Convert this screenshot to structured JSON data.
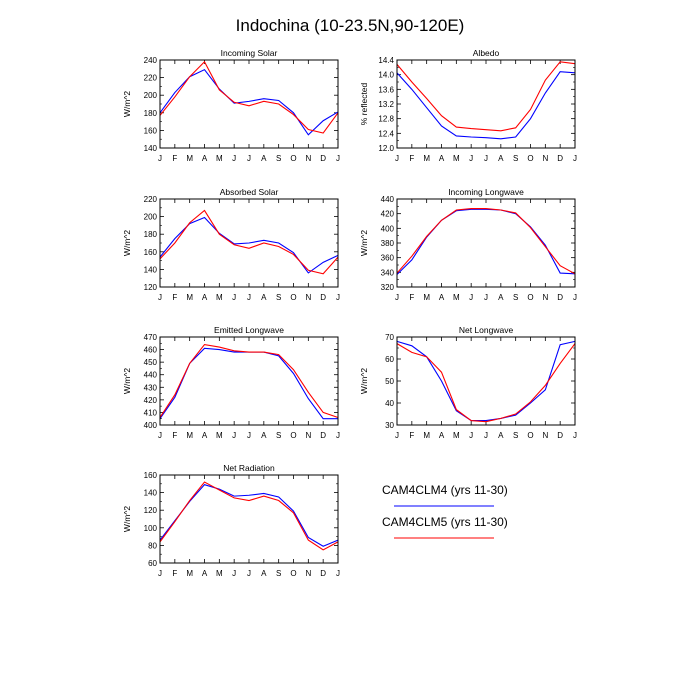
{
  "figure": {
    "title": "Indochina (10-23.5N,90-120E)"
  },
  "legend": {
    "entries": [
      {
        "label": "CAM4CLM4 (yrs 11-30)",
        "color": "#0000ff"
      },
      {
        "label": "CAM4CLM5 (yrs 11-30)",
        "color": "#ff0000"
      }
    ]
  },
  "chart_data": [
    {
      "type": "line",
      "title": "Incoming Solar",
      "ylabel": "W/m^2",
      "ylim": [
        140,
        240
      ],
      "yticks": [
        140,
        160,
        180,
        200,
        220,
        240
      ],
      "categories": [
        "J",
        "F",
        "M",
        "A",
        "M",
        "J",
        "J",
        "A",
        "S",
        "O",
        "N",
        "D",
        "J"
      ],
      "series": [
        {
          "name": "CAM4CLM4 (yrs 11-30)",
          "color": "#0000ff",
          "values": [
            180,
            203,
            221,
            229,
            207,
            191,
            193,
            196,
            194,
            180,
            155,
            171,
            181
          ]
        },
        {
          "name": "CAM4CLM5 (yrs 11-30)",
          "color": "#ff0000",
          "values": [
            177,
            198,
            221,
            238,
            206,
            192,
            188,
            193,
            190,
            178,
            161,
            157,
            180
          ]
        }
      ]
    },
    {
      "type": "line",
      "title": "Albedo",
      "ylabel": "% reflected",
      "ylim": [
        12.0,
        14.4
      ],
      "yticks": [
        12.0,
        12.4,
        12.8,
        13.2,
        13.6,
        14.0,
        14.4
      ],
      "categories": [
        "J",
        "F",
        "M",
        "A",
        "M",
        "J",
        "J",
        "A",
        "S",
        "O",
        "N",
        "D",
        "J"
      ],
      "series": [
        {
          "name": "CAM4CLM4 (yrs 11-30)",
          "color": "#0000ff",
          "values": [
            14.05,
            13.6,
            13.1,
            12.6,
            12.33,
            12.3,
            12.28,
            12.25,
            12.3,
            12.8,
            13.5,
            14.08,
            14.05
          ]
        },
        {
          "name": "CAM4CLM5 (yrs 11-30)",
          "color": "#ff0000",
          "values": [
            14.28,
            13.8,
            13.35,
            12.88,
            12.57,
            12.53,
            12.5,
            12.47,
            12.55,
            13.05,
            13.85,
            14.35,
            14.3
          ]
        }
      ]
    },
    {
      "type": "line",
      "title": "Absorbed Solar",
      "ylabel": "W/m^2",
      "ylim": [
        120,
        220
      ],
      "yticks": [
        120,
        140,
        160,
        180,
        200,
        220
      ],
      "categories": [
        "J",
        "F",
        "M",
        "A",
        "M",
        "J",
        "J",
        "A",
        "S",
        "O",
        "N",
        "D",
        "J"
      ],
      "series": [
        {
          "name": "CAM4CLM4 (yrs 11-30)",
          "color": "#0000ff",
          "values": [
            154,
            175,
            192,
            199,
            181,
            169,
            170,
            173,
            170,
            159,
            136,
            148,
            156
          ]
        },
        {
          "name": "CAM4CLM5 (yrs 11-30)",
          "color": "#ff0000",
          "values": [
            152,
            170,
            193,
            207,
            180,
            168,
            164,
            170,
            166,
            157,
            139,
            135,
            154
          ]
        }
      ]
    },
    {
      "type": "line",
      "title": "Incoming Longwave",
      "ylabel": "W/m^2",
      "ylim": [
        320,
        440
      ],
      "yticks": [
        320,
        340,
        360,
        380,
        400,
        420,
        440
      ],
      "categories": [
        "J",
        "F",
        "M",
        "A",
        "M",
        "J",
        "J",
        "A",
        "S",
        "O",
        "N",
        "D",
        "J"
      ],
      "series": [
        {
          "name": "CAM4CLM4 (yrs 11-30)",
          "color": "#0000ff",
          "values": [
            337,
            357,
            388,
            411,
            424,
            426,
            426,
            425,
            420,
            402,
            377,
            339,
            338
          ]
        },
        {
          "name": "CAM4CLM5 (yrs 11-30)",
          "color": "#ff0000",
          "values": [
            339,
            362,
            389,
            411,
            425,
            427,
            427,
            425,
            421,
            401,
            375,
            349,
            338
          ]
        }
      ]
    },
    {
      "type": "line",
      "title": "Emitted Longwave",
      "ylabel": "W/m^2",
      "ylim": [
        400,
        470
      ],
      "yticks": [
        400,
        410,
        420,
        430,
        440,
        450,
        460,
        470
      ],
      "categories": [
        "J",
        "F",
        "M",
        "A",
        "M",
        "J",
        "J",
        "A",
        "S",
        "O",
        "N",
        "D",
        "J"
      ],
      "series": [
        {
          "name": "CAM4CLM4 (yrs 11-30)",
          "color": "#0000ff",
          "values": [
            405,
            422,
            449,
            461,
            460,
            458,
            458,
            458,
            455,
            441,
            421,
            405,
            405
          ]
        },
        {
          "name": "CAM4CLM5 (yrs 11-30)",
          "color": "#ff0000",
          "values": [
            406,
            424,
            449,
            464,
            462,
            459,
            458,
            458,
            456,
            444,
            426,
            410,
            406
          ]
        }
      ]
    },
    {
      "type": "line",
      "title": "Net Longwave",
      "ylabel": "W/m^2",
      "ylim": [
        30,
        70
      ],
      "yticks": [
        30,
        40,
        50,
        60,
        70
      ],
      "categories": [
        "J",
        "F",
        "M",
        "A",
        "M",
        "J",
        "J",
        "A",
        "S",
        "O",
        "N",
        "D",
        "J"
      ],
      "series": [
        {
          "name": "CAM4CLM4 (yrs 11-30)",
          "color": "#0000ff",
          "values": [
            68,
            66,
            61,
            50,
            36.5,
            32,
            32,
            33,
            34.5,
            40,
            46,
            66.5,
            68
          ]
        },
        {
          "name": "CAM4CLM5 (yrs 11-30)",
          "color": "#ff0000",
          "values": [
            67,
            63,
            61,
            54,
            37,
            32,
            31.5,
            33,
            35,
            40.5,
            48,
            58,
            67
          ]
        }
      ]
    },
    {
      "type": "line",
      "title": "Net Radiation",
      "ylabel": "W/m^2",
      "ylim": [
        60,
        160
      ],
      "yticks": [
        60,
        80,
        100,
        120,
        140,
        160
      ],
      "categories": [
        "J",
        "F",
        "M",
        "A",
        "M",
        "J",
        "J",
        "A",
        "S",
        "O",
        "N",
        "D",
        "J"
      ],
      "series": [
        {
          "name": "CAM4CLM4 (yrs 11-30)",
          "color": "#0000ff",
          "values": [
            86,
            108,
            130,
            149,
            144,
            136,
            137,
            139,
            135,
            119,
            89,
            79,
            86
          ]
        },
        {
          "name": "CAM4CLM5 (yrs 11-30)",
          "color": "#ff0000",
          "values": [
            84,
            107,
            131,
            152,
            143,
            134,
            131,
            136,
            131,
            117,
            86,
            75,
            84
          ]
        }
      ]
    }
  ]
}
